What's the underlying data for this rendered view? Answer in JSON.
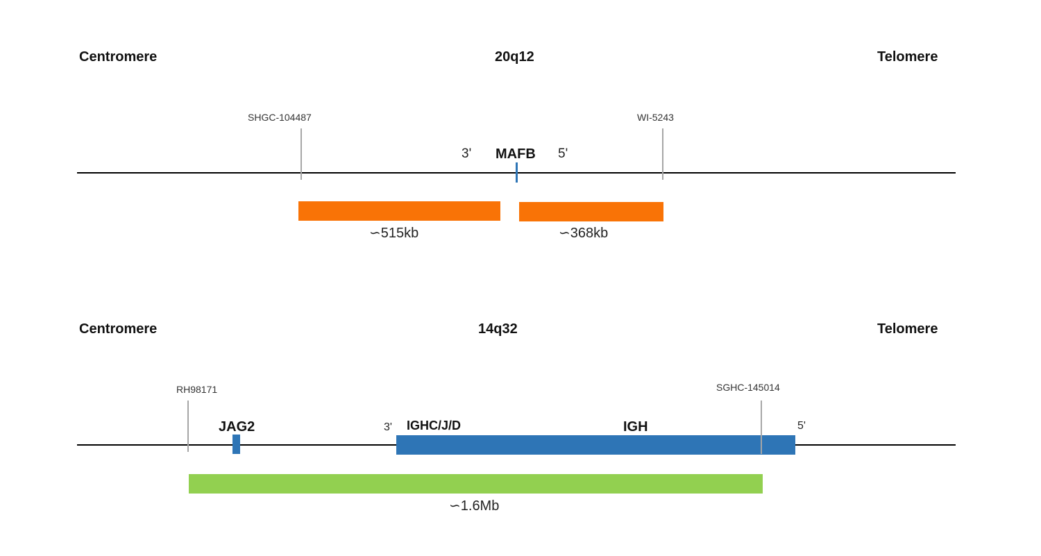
{
  "panels": [
    {
      "left_label": "Centromere",
      "region": "20q12",
      "right_label": "Telomere",
      "marker_left": "SHGC-104487",
      "marker_right": "WI-5243",
      "end3": "3'",
      "end5": "5'",
      "gene": "MAFB",
      "segment_left_size": "∽515kb",
      "segment_right_size": "∽368kb",
      "colors": {
        "segment": "#f97306",
        "gene": "#2e75b6",
        "chromosome": "#000000",
        "marker": "#a6a6a6"
      }
    },
    {
      "left_label": "Centromere",
      "region": "14q32",
      "right_label": "Telomere",
      "marker_left": "RH98171",
      "marker_right": "SGHC-145014",
      "gene_small": "JAG2",
      "end3": "3'",
      "gene_label": "IGHC/J/D",
      "gene_main": "IGH",
      "end5": "5'",
      "segment_size": "∽1.6Mb",
      "colors": {
        "segment": "#92d050",
        "gene": "#2e75b6",
        "chromosome": "#000000",
        "marker": "#a6a6a6"
      }
    }
  ]
}
